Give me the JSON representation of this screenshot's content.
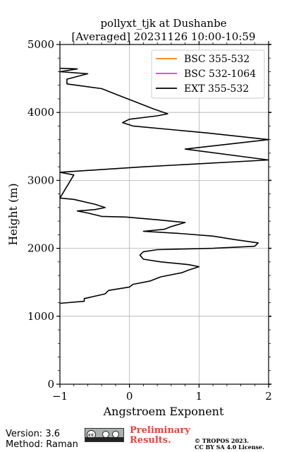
{
  "chart_data": {
    "type": "line",
    "title_lines": [
      "pollyxt_tjk at Dushanbe",
      "[Averaged] 20231126 10:00-10:59"
    ],
    "xlabel": "Angstroem Exponent",
    "ylabel": "Height (m)",
    "xlim": [
      -1,
      2
    ],
    "ylim": [
      0,
      5000
    ],
    "xticks": [
      -1,
      0,
      1,
      2
    ],
    "xtick_labels": [
      "−1",
      "0",
      "1",
      "2"
    ],
    "yticks": [
      0,
      1000,
      2000,
      3000,
      4000,
      5000
    ],
    "ytick_labels": [
      "0",
      "1000",
      "2000",
      "3000",
      "4000",
      "5000"
    ],
    "grid": true,
    "legend_position": "top-right",
    "series": [
      {
        "name": "BSC 355-532",
        "color": "#ff7f0e",
        "points": []
      },
      {
        "name": "BSC 532-1064",
        "color": "#e433e4",
        "points": []
      },
      {
        "name": "EXT 355-532",
        "color": "#000000",
        "points": [
          [
            -1.0,
            1190
          ],
          [
            -0.65,
            1220
          ],
          [
            -0.65,
            1260
          ],
          [
            -0.35,
            1330
          ],
          [
            -0.3,
            1380
          ],
          [
            0.0,
            1430
          ],
          [
            0.05,
            1470
          ],
          [
            0.3,
            1520
          ],
          [
            0.45,
            1580
          ],
          [
            0.75,
            1640
          ],
          [
            0.85,
            1680
          ],
          [
            1.0,
            1730
          ],
          [
            0.85,
            1760
          ],
          [
            0.45,
            1800
          ],
          [
            0.2,
            1840
          ],
          [
            0.15,
            1900
          ],
          [
            0.2,
            1950
          ],
          [
            0.4,
            1980
          ],
          [
            1.2,
            2000
          ],
          [
            1.8,
            2030
          ],
          [
            1.85,
            2080
          ],
          [
            1.5,
            2130
          ],
          [
            1.2,
            2180
          ],
          [
            0.7,
            2220
          ],
          [
            0.2,
            2250
          ],
          [
            0.5,
            2280
          ],
          [
            0.6,
            2320
          ],
          [
            0.8,
            2380
          ],
          [
            0.4,
            2420
          ],
          [
            -0.05,
            2460
          ],
          [
            -0.4,
            2470
          ],
          [
            -0.6,
            2520
          ],
          [
            -0.75,
            2550
          ],
          [
            -0.5,
            2570
          ],
          [
            -0.35,
            2600
          ],
          [
            -0.5,
            2650
          ],
          [
            -0.8,
            2720
          ],
          [
            -1.0,
            2740
          ],
          [
            -0.8,
            3080
          ],
          [
            -1.0,
            3120
          ],
          [
            0.2,
            3200
          ],
          [
            2.0,
            3300
          ],
          [
            0.8,
            3460
          ],
          [
            2.0,
            3600
          ],
          [
            1.1,
            3700
          ],
          [
            0.05,
            3800
          ],
          [
            -0.1,
            3850
          ],
          [
            0.0,
            3900
          ],
          [
            0.4,
            3950
          ],
          [
            0.55,
            3980
          ],
          [
            0.35,
            4050
          ],
          [
            0.1,
            4150
          ],
          [
            -0.15,
            4250
          ],
          [
            -0.4,
            4350
          ],
          [
            -0.9,
            4420
          ],
          [
            -0.9,
            4490
          ],
          [
            -0.6,
            4570
          ],
          [
            -1.0,
            4600
          ],
          [
            -0.75,
            4640
          ],
          [
            -1.0,
            4650
          ]
        ]
      }
    ]
  },
  "footer": {
    "version": "Version: 3.6",
    "method": "Method: Raman",
    "preliminary_line1": "Preliminary",
    "preliminary_line2": "Results.",
    "copyright_line1": "© TROPOS 2023.",
    "copyright_line2": "CC BY SA 4.0 License.",
    "license_badge_text": "cc"
  }
}
